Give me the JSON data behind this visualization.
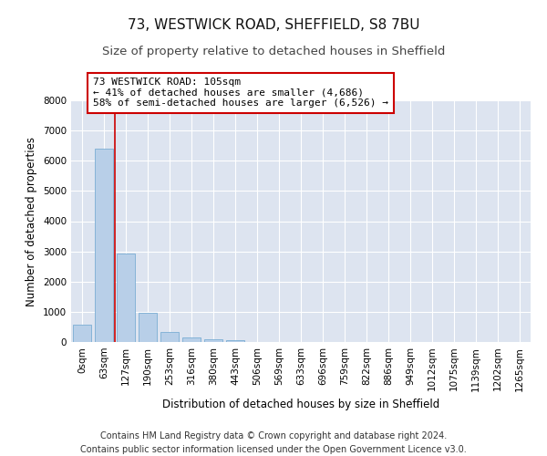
{
  "title1": "73, WESTWICK ROAD, SHEFFIELD, S8 7BU",
  "title2": "Size of property relative to detached houses in Sheffield",
  "xlabel": "Distribution of detached houses by size in Sheffield",
  "ylabel": "Number of detached properties",
  "bar_labels": [
    "0sqm",
    "63sqm",
    "127sqm",
    "190sqm",
    "253sqm",
    "316sqm",
    "380sqm",
    "443sqm",
    "506sqm",
    "569sqm",
    "633sqm",
    "696sqm",
    "759sqm",
    "822sqm",
    "886sqm",
    "949sqm",
    "1012sqm",
    "1075sqm",
    "1139sqm",
    "1202sqm",
    "1265sqm"
  ],
  "bar_values": [
    560,
    6400,
    2920,
    960,
    340,
    155,
    100,
    60,
    0,
    0,
    0,
    0,
    0,
    0,
    0,
    0,
    0,
    0,
    0,
    0,
    0
  ],
  "bar_color": "#b8cfe8",
  "bar_edge_color": "#7aadd4",
  "background_color": "#dde4f0",
  "grid_color": "#ffffff",
  "vline_x": 1.5,
  "vline_color": "#cc0000",
  "annotation_text": "73 WESTWICK ROAD: 105sqm\n← 41% of detached houses are smaller (4,686)\n58% of semi-detached houses are larger (6,526) →",
  "annotation_box_color": "#cc0000",
  "ylim": [
    0,
    8000
  ],
  "yticks": [
    0,
    1000,
    2000,
    3000,
    4000,
    5000,
    6000,
    7000,
    8000
  ],
  "footer_line1": "Contains HM Land Registry data © Crown copyright and database right 2024.",
  "footer_line2": "Contains public sector information licensed under the Open Government Licence v3.0.",
  "title1_fontsize": 11,
  "title2_fontsize": 9.5,
  "xlabel_fontsize": 8.5,
  "ylabel_fontsize": 8.5,
  "tick_fontsize": 7.5,
  "annotation_fontsize": 8,
  "footer_fontsize": 7
}
